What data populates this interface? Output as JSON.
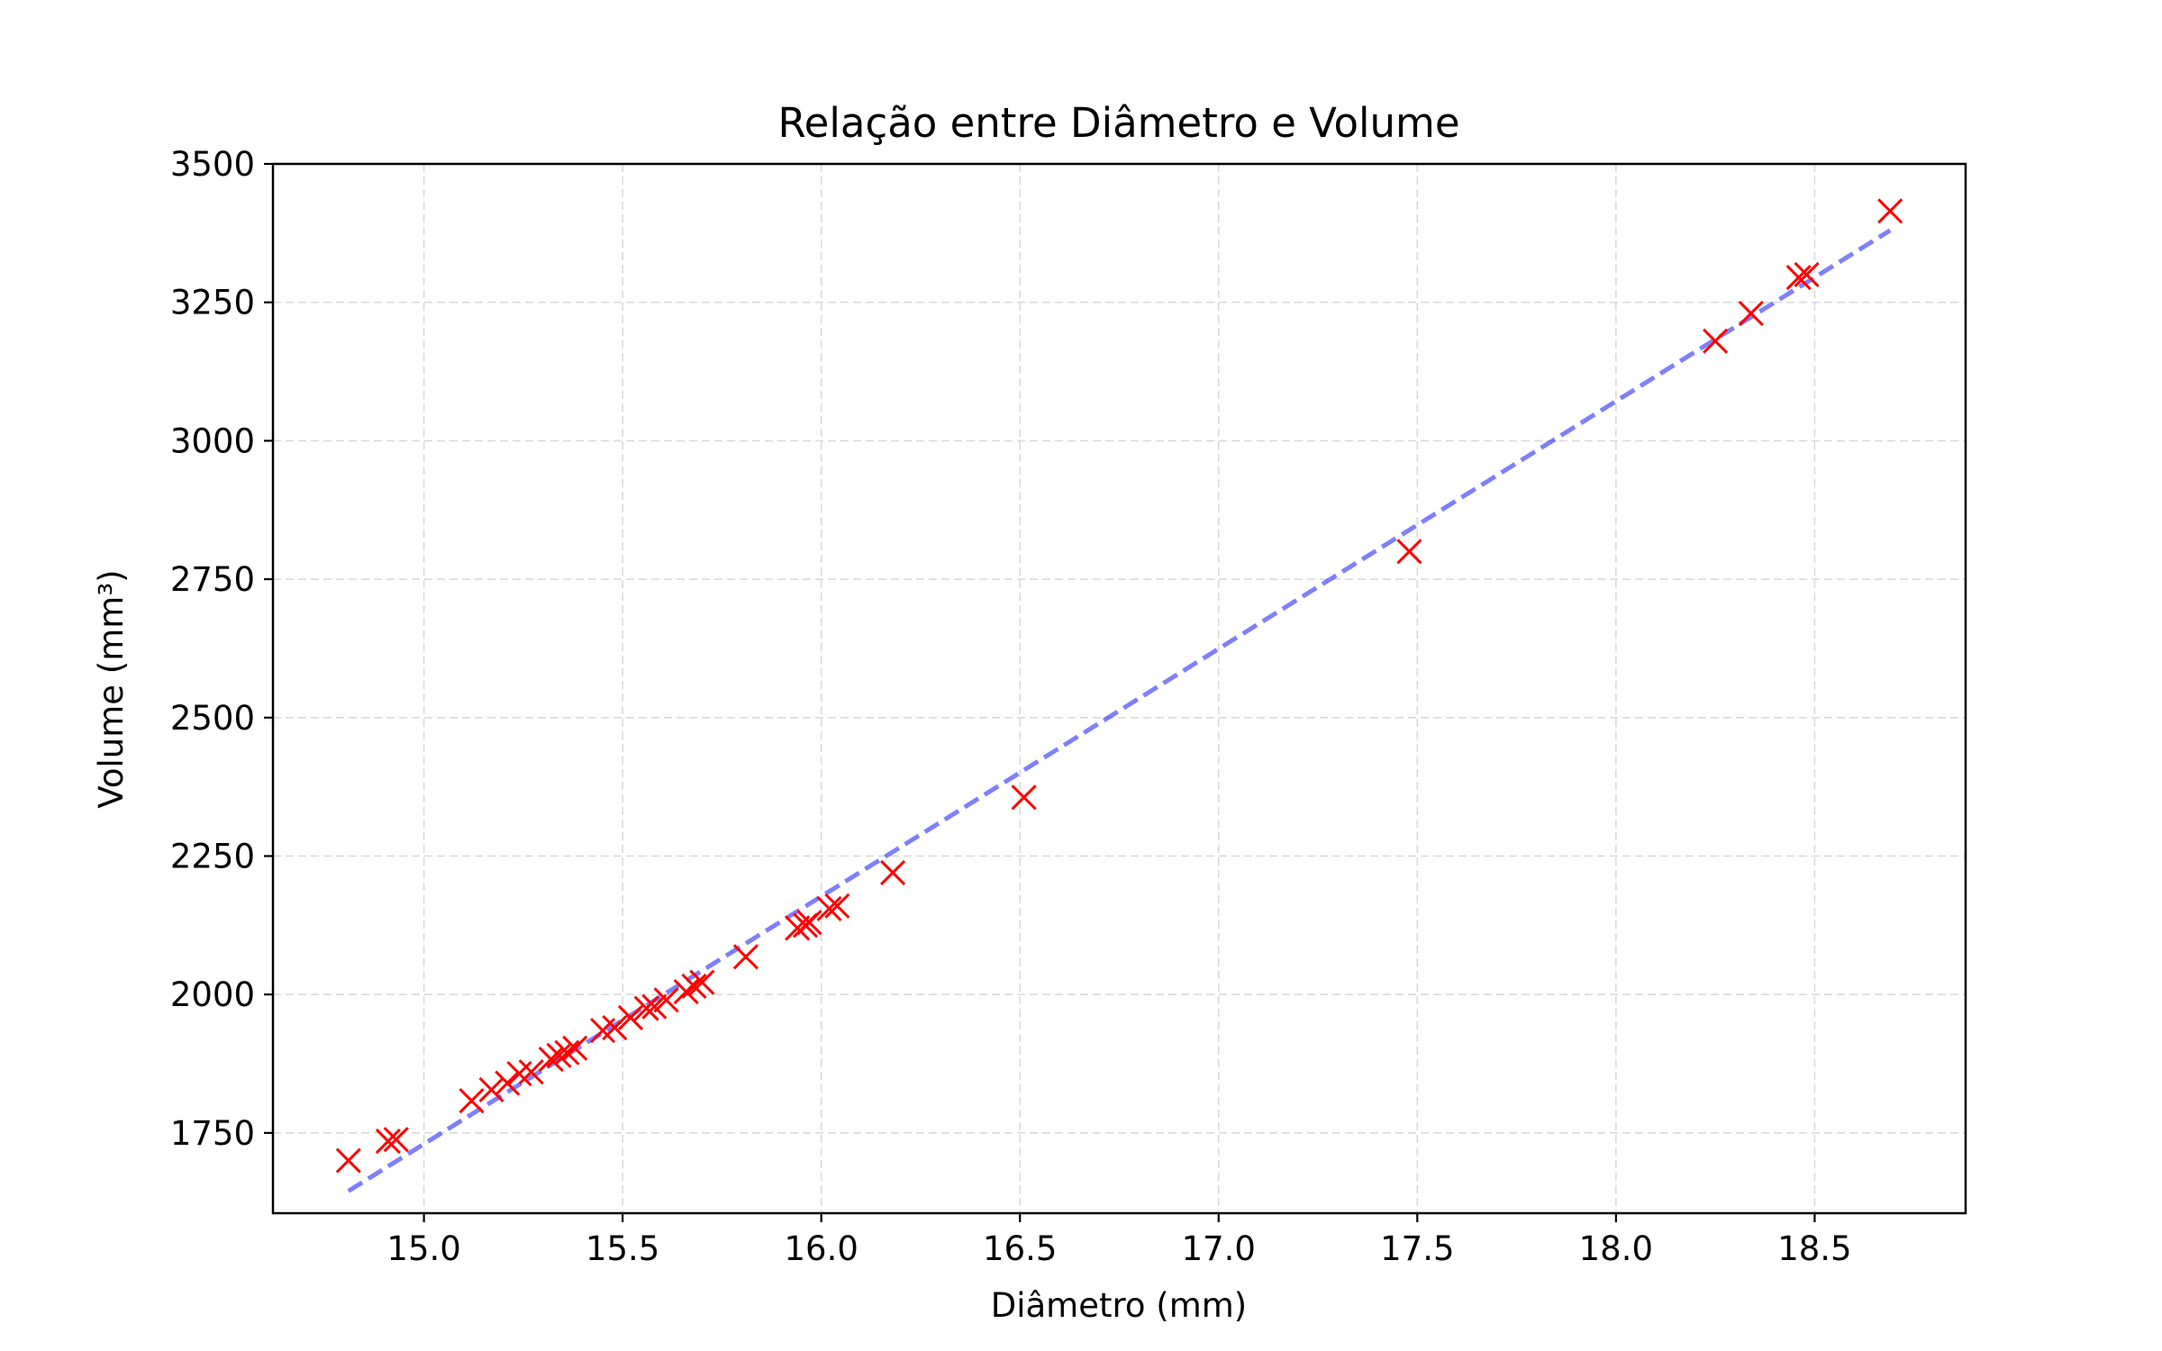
{
  "chart_data": {
    "type": "scatter",
    "title": "Relação entre Diâmetro e Volume",
    "xlabel": "Diâmetro (mm)",
    "ylabel": "Volume (mm³)",
    "xlim": [
      14.62,
      18.88
    ],
    "ylim": [
      1605,
      3500
    ],
    "xticks": [
      15.0,
      15.5,
      16.0,
      16.5,
      17.0,
      17.5,
      18.0,
      18.5
    ],
    "xtick_labels": [
      "15.0",
      "15.5",
      "16.0",
      "16.5",
      "17.0",
      "17.5",
      "18.0",
      "18.5"
    ],
    "yticks": [
      1750,
      2000,
      2250,
      2500,
      2750,
      3000,
      3250,
      3500
    ],
    "ytick_labels": [
      "1750",
      "2000",
      "2250",
      "2500",
      "2750",
      "3000",
      "3250",
      "3500"
    ],
    "grid": true,
    "series": [
      {
        "kind": "scatter",
        "marker": "x",
        "color": "#ff0000",
        "points": [
          [
            14.81,
            1700
          ],
          [
            14.91,
            1735
          ],
          [
            14.93,
            1738
          ],
          [
            15.12,
            1808
          ],
          [
            15.17,
            1828
          ],
          [
            15.21,
            1840
          ],
          [
            15.24,
            1857
          ],
          [
            15.27,
            1860
          ],
          [
            15.32,
            1883
          ],
          [
            15.34,
            1890
          ],
          [
            15.36,
            1895
          ],
          [
            15.38,
            1903
          ],
          [
            15.45,
            1935
          ],
          [
            15.48,
            1940
          ],
          [
            15.52,
            1958
          ],
          [
            15.56,
            1975
          ],
          [
            15.58,
            1978
          ],
          [
            15.61,
            1990
          ],
          [
            15.66,
            2005
          ],
          [
            15.68,
            2015
          ],
          [
            15.7,
            2022
          ],
          [
            15.81,
            2068
          ],
          [
            15.94,
            2120
          ],
          [
            15.96,
            2125
          ],
          [
            15.97,
            2130
          ],
          [
            16.02,
            2155
          ],
          [
            16.04,
            2160
          ],
          [
            16.18,
            2220
          ],
          [
            16.51,
            2356
          ],
          [
            17.48,
            2800
          ],
          [
            18.25,
            3180
          ],
          [
            18.34,
            3230
          ],
          [
            18.46,
            3295
          ],
          [
            18.48,
            3300
          ],
          [
            18.69,
            3415
          ]
        ]
      },
      {
        "kind": "line",
        "style": "dashed",
        "color": "#0000ff",
        "opacity": 0.5,
        "points": [
          [
            14.81,
            1645
          ],
          [
            18.69,
            3380
          ]
        ]
      }
    ]
  }
}
